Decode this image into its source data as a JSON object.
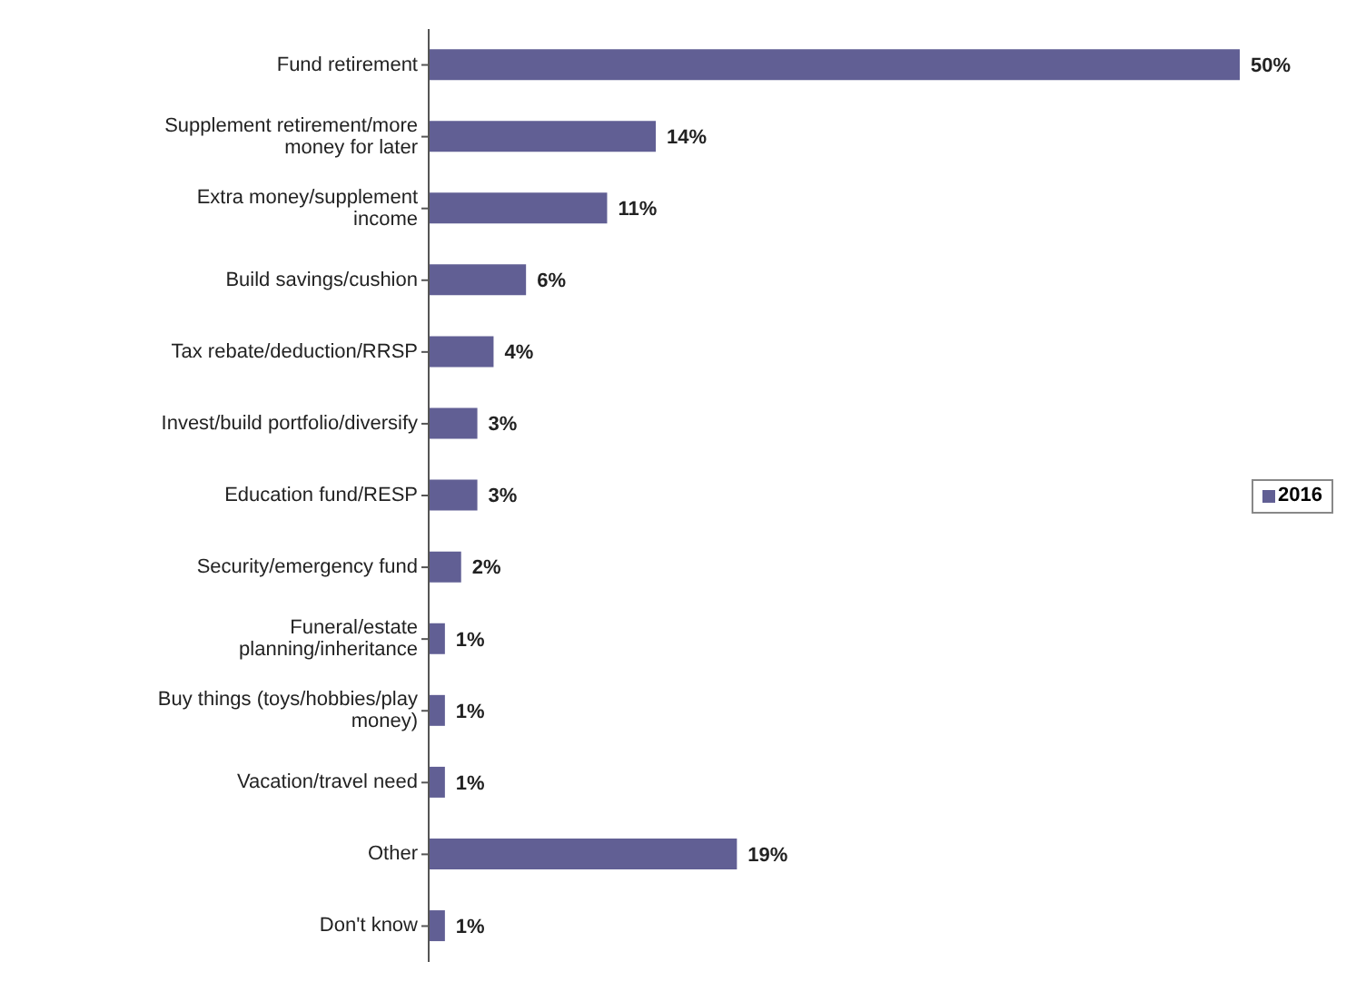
{
  "chart_data": {
    "type": "bar",
    "orientation": "horizontal",
    "categories": [
      "Fund retirement",
      "Supplement retirement/more money for later",
      "Extra money/supplement income",
      "Build savings/cushion",
      "Tax rebate/deduction/RRSP",
      "Invest/build portfolio/diversify",
      "Education fund/RESP",
      "Security/emergency fund",
      "Funeral/estate planning/inheritance",
      "Buy things (toys/hobbies/play money)",
      "Vacation/travel need",
      "Other",
      "Don't know"
    ],
    "series": [
      {
        "name": "2016",
        "color": "#615f94",
        "values": [
          50,
          14,
          11,
          6,
          4,
          3,
          3,
          2,
          1,
          1,
          1,
          19,
          1
        ],
        "value_labels": [
          "50%",
          "14%",
          "11%",
          "6%",
          "4%",
          "3%",
          "3%",
          "2%",
          "1%",
          "1%",
          "1%",
          "19%",
          "1%"
        ]
      }
    ],
    "legend": "right",
    "tick_labels": "y"
  }
}
